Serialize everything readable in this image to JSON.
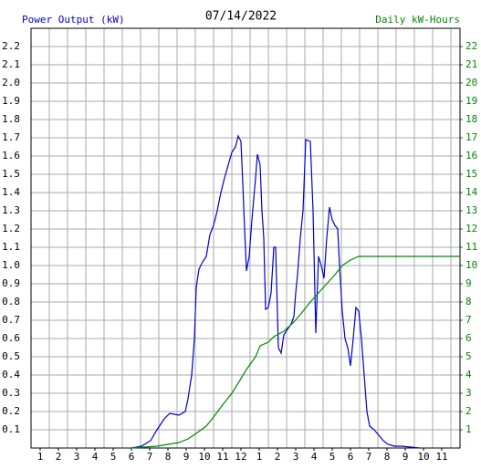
{
  "chart_data": {
    "type": "line",
    "title": "07/14/2022",
    "y_label": "Power Output (kW)",
    "y2_label": "Daily kW-Hours",
    "xlim": [
      0.5,
      24
    ],
    "ylim": [
      0,
      2.3
    ],
    "y2lim": [
      0,
      23
    ],
    "grid": true,
    "xticks": [
      1,
      2,
      3,
      4,
      5,
      6,
      7,
      8,
      9,
      10,
      11,
      12,
      {
        "value": 13,
        "label": "1"
      },
      {
        "value": 14,
        "label": "2"
      },
      {
        "value": 15,
        "label": "3"
      },
      {
        "value": 16,
        "label": "4"
      },
      {
        "value": 17,
        "label": "5"
      },
      {
        "value": 18,
        "label": "6"
      },
      {
        "value": 19,
        "label": "7"
      },
      {
        "value": 20,
        "label": "8"
      },
      {
        "value": 21,
        "label": "9"
      },
      {
        "value": 22,
        "label": "10"
      },
      {
        "value": 23,
        "label": "11"
      }
    ],
    "yticks": [
      0.1,
      0.2,
      0.3,
      0.4,
      0.5,
      0.6,
      0.7,
      0.8,
      0.9,
      {
        "value": 1.0,
        "label": "1.0"
      },
      1.1,
      1.2,
      1.3,
      1.4,
      1.5,
      1.6,
      1.7,
      1.8,
      1.9,
      {
        "value": 2.0,
        "label": "2.0"
      },
      2.1,
      2.2
    ],
    "y2ticks": [
      1,
      2,
      3,
      4,
      5,
      6,
      7,
      8,
      9,
      10,
      11,
      12,
      13,
      14,
      15,
      16,
      17,
      18,
      19,
      20,
      21,
      22
    ],
    "series": [
      {
        "name": "Power Output (kW)",
        "color": "#0000cc",
        "x": [
          6.0,
          6.55,
          7.05,
          7.4,
          7.8,
          8.1,
          8.6,
          8.95,
          9.1,
          9.3,
          9.45,
          9.55,
          9.7,
          9.9,
          10.1,
          10.3,
          10.5,
          10.7,
          10.9,
          11.1,
          11.3,
          11.5,
          11.7,
          11.85,
          12.0,
          12.1,
          12.2,
          12.3,
          12.45,
          12.6,
          12.8,
          12.9,
          13.05,
          13.15,
          13.25,
          13.35,
          13.5,
          13.65,
          13.8,
          13.9,
          14.05,
          14.2,
          14.35,
          14.55,
          14.75,
          14.9,
          15.0,
          15.1,
          15.25,
          15.4,
          15.55,
          15.8,
          15.95,
          16.1,
          16.25,
          16.4,
          16.55,
          16.7,
          16.85,
          17.0,
          17.15,
          17.3,
          17.4,
          17.55,
          17.7,
          17.85,
          18.0,
          18.15,
          18.3,
          18.45,
          18.6,
          18.75,
          18.9,
          19.05,
          19.3,
          19.55,
          19.8,
          20.05,
          20.4,
          20.8,
          21.8
        ],
        "values": [
          0,
          0.01,
          0.04,
          0.1,
          0.16,
          0.19,
          0.18,
          0.2,
          0.27,
          0.4,
          0.6,
          0.88,
          0.98,
          1.02,
          1.05,
          1.17,
          1.22,
          1.3,
          1.4,
          1.48,
          1.55,
          1.62,
          1.65,
          1.71,
          1.68,
          1.45,
          1.2,
          0.97,
          1.05,
          1.25,
          1.48,
          1.61,
          1.55,
          1.3,
          1.15,
          0.76,
          0.77,
          0.85,
          1.1,
          1.1,
          0.55,
          0.52,
          0.62,
          0.65,
          0.68,
          0.72,
          0.85,
          0.95,
          1.15,
          1.3,
          1.69,
          1.68,
          1.3,
          0.63,
          1.05,
          1.0,
          0.93,
          1.15,
          1.32,
          1.25,
          1.22,
          1.2,
          1.0,
          0.75,
          0.6,
          0.55,
          0.45,
          0.6,
          0.77,
          0.75,
          0.6,
          0.4,
          0.2,
          0.12,
          0.1,
          0.07,
          0.04,
          0.02,
          0.01,
          0.01,
          0
        ]
      },
      {
        "name": "Daily kW-Hours",
        "color": "#008800",
        "axis": "y2",
        "x": [
          6,
          7.4,
          8.6,
          9.1,
          9.55,
          10.1,
          10.5,
          11.1,
          11.5,
          12.0,
          12.3,
          12.8,
          13.05,
          13.5,
          13.8,
          14.35,
          14.9,
          15.4,
          15.8,
          16.25,
          16.7,
          17.15,
          17.55,
          18.0,
          18.45,
          18.9,
          19.8,
          24
        ],
        "values": [
          0,
          0.1,
          0.3,
          0.5,
          0.8,
          1.2,
          1.7,
          2.5,
          3.0,
          3.8,
          4.3,
          5.0,
          5.6,
          5.8,
          6.1,
          6.4,
          6.9,
          7.5,
          8.0,
          8.5,
          9.0,
          9.5,
          10.0,
          10.3,
          10.5,
          10.5,
          10.5,
          10.5
        ]
      }
    ]
  }
}
